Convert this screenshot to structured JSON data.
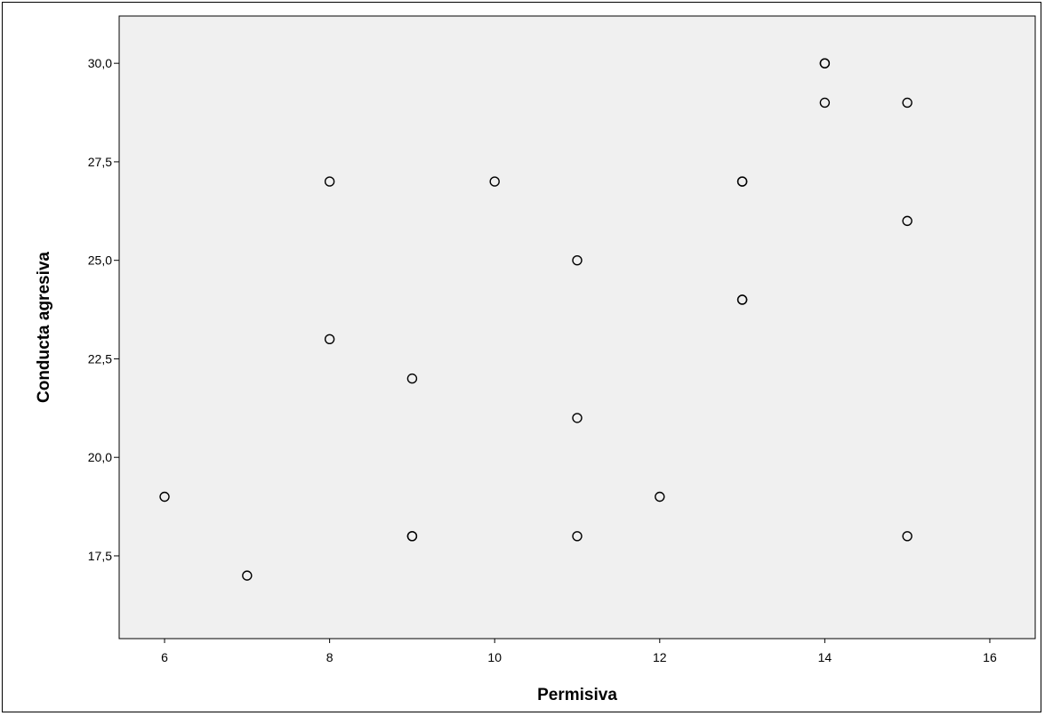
{
  "chart_data": {
    "type": "scatter",
    "title": "",
    "xlabel": "Permisiva",
    "ylabel": "Conducta agresiva",
    "xlim": [
      5.45,
      16.55
    ],
    "ylim": [
      15.4,
      31.2
    ],
    "x_ticks": [
      6,
      8,
      10,
      12,
      14,
      16
    ],
    "x_tick_labels": [
      "6",
      "8",
      "10",
      "12",
      "14",
      "16"
    ],
    "y_ticks": [
      17.5,
      20.0,
      22.5,
      25.0,
      27.5,
      30.0
    ],
    "y_tick_labels": [
      "17,5",
      "20,0",
      "22,5",
      "25,0",
      "27,5",
      "30,0"
    ],
    "grid": false,
    "plot_background": "#f0f0f0",
    "marker": "hollow-circle",
    "marker_color": "#000000",
    "points": [
      {
        "x": 6,
        "y": 19
      },
      {
        "x": 7,
        "y": 17
      },
      {
        "x": 8,
        "y": 27
      },
      {
        "x": 8,
        "y": 23
      },
      {
        "x": 9,
        "y": 22
      },
      {
        "x": 9,
        "y": 18
      },
      {
        "x": 9,
        "y": 18
      },
      {
        "x": 10,
        "y": 27
      },
      {
        "x": 11,
        "y": 25
      },
      {
        "x": 11,
        "y": 21
      },
      {
        "x": 11,
        "y": 18
      },
      {
        "x": 12,
        "y": 19
      },
      {
        "x": 13,
        "y": 27
      },
      {
        "x": 13,
        "y": 27
      },
      {
        "x": 13,
        "y": 24
      },
      {
        "x": 13,
        "y": 24
      },
      {
        "x": 14,
        "y": 30
      },
      {
        "x": 14,
        "y": 30
      },
      {
        "x": 14,
        "y": 29
      },
      {
        "x": 15,
        "y": 29
      },
      {
        "x": 15,
        "y": 26
      },
      {
        "x": 15,
        "y": 18
      }
    ]
  }
}
